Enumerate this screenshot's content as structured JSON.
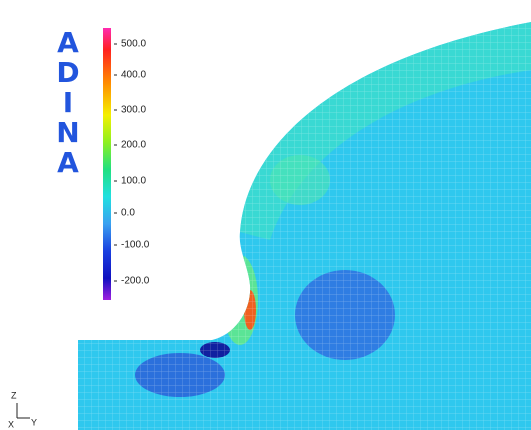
{
  "logo": {
    "letters": [
      "A",
      "D",
      "I",
      "N",
      "A"
    ]
  },
  "legend": {
    "labels": [
      "500.0",
      "400.0",
      "300.0",
      "200.0",
      "100.0",
      "0.0",
      "-100.0",
      "-200.0"
    ]
  },
  "triad": {
    "z": "Z",
    "x": "X",
    "y": "Y"
  }
}
